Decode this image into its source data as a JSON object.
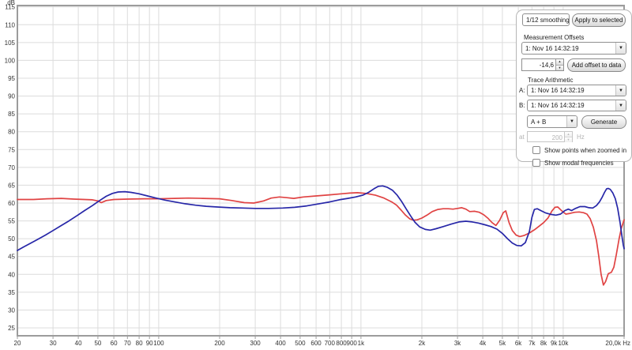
{
  "chart": {
    "y_axis": {
      "unit": "dB",
      "ticks": [
        115,
        110,
        105,
        100,
        95,
        90,
        85,
        80,
        75,
        70,
        65,
        60,
        55,
        50,
        45,
        40,
        35,
        30,
        25
      ]
    },
    "x_axis": {
      "ticks": [
        {
          "f": 20,
          "label": "20"
        },
        {
          "f": 30,
          "label": "30"
        },
        {
          "f": 40,
          "label": "40"
        },
        {
          "f": 50,
          "label": "50"
        },
        {
          "f": 60,
          "label": "60"
        },
        {
          "f": 70,
          "label": "70"
        },
        {
          "f": 80,
          "label": "80"
        },
        {
          "f": 90,
          "label": "90"
        },
        {
          "f": 100,
          "label": "100"
        },
        {
          "f": 200,
          "label": "200"
        },
        {
          "f": 300,
          "label": "300"
        },
        {
          "f": 400,
          "label": "400"
        },
        {
          "f": 500,
          "label": "500"
        },
        {
          "f": 600,
          "label": "600"
        },
        {
          "f": 700,
          "label": "700"
        },
        {
          "f": 800,
          "label": "800"
        },
        {
          "f": 900,
          "label": "900"
        },
        {
          "f": 1000,
          "label": "1k"
        },
        {
          "f": 2000,
          "label": "2k"
        },
        {
          "f": 3000,
          "label": "3k"
        },
        {
          "f": 4000,
          "label": "4k"
        },
        {
          "f": 5000,
          "label": "5k"
        },
        {
          "f": 6000,
          "label": "6k"
        },
        {
          "f": 7000,
          "label": "7k"
        },
        {
          "f": 8000,
          "label": "8k"
        },
        {
          "f": 9000,
          "label": "9k"
        },
        {
          "f": 10000,
          "label": "10k"
        },
        {
          "f": 20000,
          "label": "20,0k Hz"
        }
      ]
    },
    "grid_color": "#dcdcdc",
    "border_color": "#9c9c9c",
    "label_color": "#333333"
  },
  "chart_data": {
    "type": "line",
    "title": "",
    "xlabel": "Hz",
    "ylabel": "dB",
    "x_scale": "log",
    "xlim": [
      20,
      20000
    ],
    "ylim": [
      22.8,
      115.4
    ],
    "grid": true,
    "series": [
      {
        "name": "measurement-red",
        "color": "#e04343",
        "points": [
          [
            20,
            61.0
          ],
          [
            24,
            61.0
          ],
          [
            28,
            61.2
          ],
          [
            33,
            61.3
          ],
          [
            38,
            61.1
          ],
          [
            43,
            61.0
          ],
          [
            47,
            60.9
          ],
          [
            50,
            60.6
          ],
          [
            52,
            60.1
          ],
          [
            55,
            60.7
          ],
          [
            60,
            61.0
          ],
          [
            70,
            61.1
          ],
          [
            85,
            61.2
          ],
          [
            100,
            61.2
          ],
          [
            120,
            61.3
          ],
          [
            140,
            61.4
          ],
          [
            165,
            61.3
          ],
          [
            200,
            61.2
          ],
          [
            230,
            60.7
          ],
          [
            265,
            60.1
          ],
          [
            295,
            60.0
          ],
          [
            330,
            60.6
          ],
          [
            360,
            61.4
          ],
          [
            395,
            61.7
          ],
          [
            430,
            61.5
          ],
          [
            465,
            61.3
          ],
          [
            520,
            61.7
          ],
          [
            600,
            62.0
          ],
          [
            700,
            62.3
          ],
          [
            800,
            62.6
          ],
          [
            880,
            62.8
          ],
          [
            960,
            62.9
          ],
          [
            1060,
            62.7
          ],
          [
            1180,
            62.2
          ],
          [
            1300,
            61.4
          ],
          [
            1420,
            60.3
          ],
          [
            1500,
            59.4
          ],
          [
            1580,
            58.0
          ],
          [
            1660,
            56.6
          ],
          [
            1740,
            55.6
          ],
          [
            1820,
            55.2
          ],
          [
            1900,
            55.3
          ],
          [
            2000,
            55.8
          ],
          [
            2120,
            56.6
          ],
          [
            2250,
            57.6
          ],
          [
            2400,
            58.2
          ],
          [
            2550,
            58.4
          ],
          [
            2700,
            58.4
          ],
          [
            2850,
            58.3
          ],
          [
            3000,
            58.5
          ],
          [
            3150,
            58.7
          ],
          [
            3300,
            58.3
          ],
          [
            3450,
            57.6
          ],
          [
            3650,
            57.7
          ],
          [
            3850,
            57.4
          ],
          [
            4050,
            56.7
          ],
          [
            4250,
            55.7
          ],
          [
            4450,
            54.5
          ],
          [
            4650,
            53.7
          ],
          [
            4850,
            55.2
          ],
          [
            5050,
            57.3
          ],
          [
            5200,
            57.8
          ],
          [
            5400,
            54.5
          ],
          [
            5600,
            52.3
          ],
          [
            5850,
            51.0
          ],
          [
            6100,
            50.6
          ],
          [
            6400,
            50.9
          ],
          [
            6800,
            51.6
          ],
          [
            7200,
            52.5
          ],
          [
            7600,
            53.5
          ],
          [
            8000,
            54.5
          ],
          [
            8400,
            55.8
          ],
          [
            8800,
            57.8
          ],
          [
            9100,
            58.8
          ],
          [
            9400,
            58.9
          ],
          [
            9800,
            57.9
          ],
          [
            10300,
            56.9
          ],
          [
            10800,
            57.1
          ],
          [
            11400,
            57.4
          ],
          [
            12000,
            57.5
          ],
          [
            12600,
            57.3
          ],
          [
            13100,
            56.9
          ],
          [
            13600,
            55.6
          ],
          [
            14100,
            53.2
          ],
          [
            14600,
            49.5
          ],
          [
            15000,
            45.0
          ],
          [
            15400,
            40.0
          ],
          [
            15800,
            37.0
          ],
          [
            16200,
            38.0
          ],
          [
            16700,
            40.2
          ],
          [
            17300,
            40.6
          ],
          [
            17800,
            42.0
          ],
          [
            18300,
            45.5
          ],
          [
            18900,
            50.0
          ],
          [
            19400,
            53.0
          ],
          [
            20000,
            55.3
          ]
        ]
      },
      {
        "name": "measurement-blue",
        "color": "#2727a8",
        "points": [
          [
            20,
            46.7
          ],
          [
            21.5,
            47.7
          ],
          [
            23,
            48.6
          ],
          [
            25,
            49.7
          ],
          [
            27.5,
            51.0
          ],
          [
            30,
            52.3
          ],
          [
            33,
            53.7
          ],
          [
            36,
            55.0
          ],
          [
            39.5,
            56.5
          ],
          [
            43,
            57.9
          ],
          [
            47,
            59.3
          ],
          [
            51,
            60.7
          ],
          [
            55,
            61.9
          ],
          [
            59,
            62.7
          ],
          [
            63,
            63.1
          ],
          [
            68,
            63.2
          ],
          [
            73,
            63.0
          ],
          [
            80,
            62.6
          ],
          [
            88,
            62.0
          ],
          [
            97,
            61.4
          ],
          [
            108,
            60.8
          ],
          [
            120,
            60.3
          ],
          [
            135,
            59.8
          ],
          [
            152,
            59.4
          ],
          [
            172,
            59.1
          ],
          [
            195,
            58.9
          ],
          [
            225,
            58.7
          ],
          [
            260,
            58.6
          ],
          [
            300,
            58.5
          ],
          [
            350,
            58.5
          ],
          [
            410,
            58.6
          ],
          [
            470,
            58.8
          ],
          [
            540,
            59.2
          ],
          [
            620,
            59.8
          ],
          [
            700,
            60.3
          ],
          [
            780,
            60.9
          ],
          [
            860,
            61.3
          ],
          [
            940,
            61.7
          ],
          [
            1020,
            62.2
          ],
          [
            1090,
            63.0
          ],
          [
            1160,
            64.0
          ],
          [
            1220,
            64.7
          ],
          [
            1280,
            64.8
          ],
          [
            1350,
            64.4
          ],
          [
            1430,
            63.6
          ],
          [
            1510,
            62.2
          ],
          [
            1590,
            60.4
          ],
          [
            1670,
            58.4
          ],
          [
            1760,
            56.4
          ],
          [
            1850,
            54.6
          ],
          [
            1950,
            53.3
          ],
          [
            2080,
            52.6
          ],
          [
            2200,
            52.4
          ],
          [
            2350,
            52.8
          ],
          [
            2550,
            53.4
          ],
          [
            2800,
            54.1
          ],
          [
            3050,
            54.7
          ],
          [
            3300,
            54.9
          ],
          [
            3550,
            54.7
          ],
          [
            3800,
            54.4
          ],
          [
            4100,
            53.9
          ],
          [
            4400,
            53.4
          ],
          [
            4700,
            52.7
          ],
          [
            5000,
            51.5
          ],
          [
            5300,
            50.0
          ],
          [
            5600,
            48.8
          ],
          [
            5900,
            48.1
          ],
          [
            6200,
            48.0
          ],
          [
            6500,
            48.9
          ],
          [
            6800,
            52.0
          ],
          [
            7000,
            56.0
          ],
          [
            7200,
            58.2
          ],
          [
            7450,
            58.4
          ],
          [
            7800,
            57.8
          ],
          [
            8200,
            57.2
          ],
          [
            8700,
            56.8
          ],
          [
            9200,
            56.6
          ],
          [
            9700,
            56.9
          ],
          [
            10200,
            57.9
          ],
          [
            10600,
            58.3
          ],
          [
            11000,
            57.9
          ],
          [
            11500,
            58.5
          ],
          [
            12100,
            59.0
          ],
          [
            12800,
            59.0
          ],
          [
            13400,
            58.7
          ],
          [
            14000,
            58.6
          ],
          [
            14600,
            59.3
          ],
          [
            15100,
            60.3
          ],
          [
            15600,
            61.7
          ],
          [
            16000,
            63.0
          ],
          [
            16400,
            64.0
          ],
          [
            16700,
            64.1
          ],
          [
            17100,
            63.8
          ],
          [
            17600,
            62.8
          ],
          [
            18100,
            61.2
          ],
          [
            18600,
            58.5
          ],
          [
            19100,
            54.5
          ],
          [
            19500,
            50.8
          ],
          [
            19800,
            48.3
          ],
          [
            20000,
            47.2
          ]
        ]
      }
    ]
  },
  "panel": {
    "smoothing_value": "1/12 smoothing",
    "apply_label": "Apply to selected",
    "offsets": {
      "title": "Measurement Offsets",
      "select_value": "1: Nov 16 14:32:19",
      "offset_value": "-14,6",
      "add_label": "Add offset to data"
    },
    "arith": {
      "title": "Trace Arithmetic",
      "a_label": "A:",
      "a_value": "1: Nov 16 14:32:19",
      "b_label": "B:",
      "b_value": "1: Nov 16 14:32:19",
      "op_value": "A + B",
      "generate_label": "Generate",
      "at_label": "at",
      "at_value": "200",
      "hz_label": "Hz"
    },
    "checkboxes": [
      {
        "label": "Show points when zoomed in",
        "checked": false
      },
      {
        "label": "Show modal frequencies",
        "checked": false
      }
    ]
  }
}
